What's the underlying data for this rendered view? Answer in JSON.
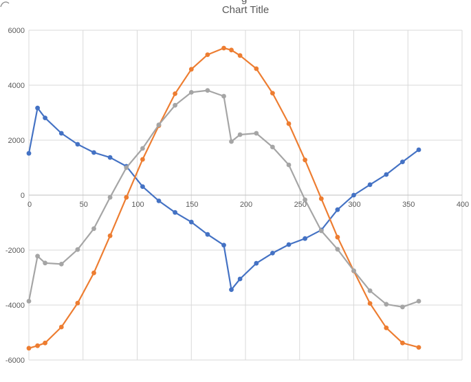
{
  "chart": {
    "title": "Chart Title"
  },
  "artifacts": {
    "title_fragment": "g",
    "left_edge_fragment": "0"
  },
  "colors": {
    "series_blue": "#4472C4",
    "series_orange": "#ED7D31",
    "series_gray": "#A5A5A5",
    "gridline": "#D9D9D9",
    "axis_line": "#BFBFBF",
    "text": "#595959"
  },
  "chart_data": {
    "type": "line",
    "title": "Chart Title",
    "legend": "none",
    "grid": true,
    "markers": true,
    "xlim": [
      0,
      400
    ],
    "ylim": [
      -6000,
      6000
    ],
    "x_ticks": [
      0,
      50,
      100,
      150,
      200,
      250,
      300,
      350,
      400
    ],
    "y_ticks": [
      6000,
      4000,
      2000,
      0,
      -2000,
      -4000,
      -6000
    ],
    "x": [
      0,
      8,
      15,
      30,
      45,
      60,
      75,
      90,
      105,
      120,
      135,
      150,
      165,
      180,
      187,
      195,
      210,
      225,
      240,
      255,
      270,
      285,
      300,
      315,
      330,
      345,
      360
    ],
    "series": [
      {
        "name": "blue",
        "color": "#4472C4",
        "values": [
          1520,
          3170,
          2810,
          2250,
          1850,
          1550,
          1370,
          1050,
          310,
          -210,
          -630,
          -980,
          -1430,
          -1820,
          -3440,
          -3050,
          -2480,
          -2110,
          -1800,
          -1580,
          -1270,
          -530,
          0,
          380,
          750,
          1210,
          1650
        ]
      },
      {
        "name": "orange",
        "color": "#ED7D31",
        "values": [
          -5570,
          -5480,
          -5380,
          -4800,
          -3930,
          -2830,
          -1480,
          -80,
          1300,
          2530,
          3690,
          4580,
          5110,
          5350,
          5280,
          5080,
          4600,
          3710,
          2600,
          1280,
          -130,
          -1530,
          -2760,
          -3940,
          -4830,
          -5380,
          -5540
        ]
      },
      {
        "name": "gray",
        "color": "#A5A5A5",
        "values": [
          -3860,
          -2220,
          -2470,
          -2510,
          -1980,
          -1220,
          -80,
          1000,
          1700,
          2560,
          3270,
          3740,
          3810,
          3600,
          1950,
          2200,
          2250,
          1750,
          1100,
          -170,
          -1300,
          -1970,
          -2750,
          -3480,
          -3970,
          -4070,
          -3860
        ]
      }
    ]
  }
}
